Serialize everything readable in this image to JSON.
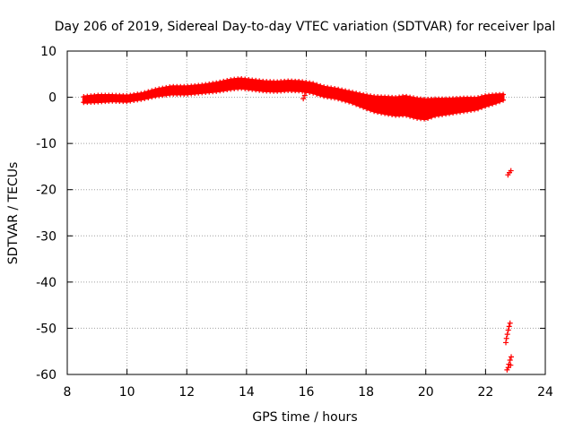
{
  "chart_data": {
    "type": "scatter",
    "title": "Day 206 of 2019, Sidereal Day-to-day VTEC variation (SDTVAR) for receiver lpal",
    "xlabel": "GPS time / hours",
    "ylabel": "SDTVAR / TECUs",
    "xlim": [
      8,
      24
    ],
    "ylim": [
      -60,
      10
    ],
    "xticks": [
      8,
      10,
      12,
      14,
      16,
      18,
      20,
      22,
      24
    ],
    "yticks": [
      -60,
      -50,
      -40,
      -30,
      -20,
      -10,
      0,
      10
    ],
    "grid": true,
    "marker": "+",
    "series": [
      {
        "name": "SDTVAR",
        "color": "#ff0000",
        "band": {
          "x": [
            8.55,
            9.0,
            9.5,
            10.0,
            10.5,
            11.0,
            11.5,
            12.0,
            12.5,
            13.0,
            13.5,
            13.8,
            14.2,
            14.6,
            15.0,
            15.4,
            15.8,
            16.2,
            16.6,
            17.0,
            17.5,
            18.0,
            18.3,
            18.7,
            19.0,
            19.3,
            19.7,
            20.0,
            20.3,
            20.7,
            21.0,
            21.3,
            21.7,
            22.0,
            22.3,
            22.6
          ],
          "y": [
            -0.5,
            -0.3,
            -0.2,
            -0.3,
            0.2,
            1.0,
            1.5,
            1.5,
            1.8,
            2.2,
            2.8,
            3.0,
            2.7,
            2.4,
            2.3,
            2.5,
            2.4,
            2.0,
            1.2,
            0.8,
            0.0,
            -1.0,
            -1.5,
            -1.8,
            -2.0,
            -1.8,
            -2.4,
            -2.6,
            -2.2,
            -2.0,
            -1.8,
            -1.6,
            -1.4,
            -0.8,
            -0.4,
            0.0
          ],
          "half_width": [
            0.6,
            0.7,
            0.6,
            0.6,
            0.6,
            0.7,
            0.8,
            0.8,
            0.8,
            0.9,
            1.0,
            1.0,
            1.0,
            1.0,
            1.0,
            1.0,
            1.0,
            1.0,
            1.0,
            1.0,
            1.1,
            1.4,
            1.6,
            1.8,
            1.9,
            2.0,
            2.1,
            2.1,
            1.8,
            1.6,
            1.5,
            1.4,
            1.2,
            1.1,
            0.9,
            0.6
          ]
        },
        "outliers": [
          {
            "x": 15.9,
            "y": -0.3
          },
          {
            "x": 15.95,
            "y": 0.4
          }
        ],
        "tail_points": [
          {
            "x": 22.75,
            "y": -16.8
          },
          {
            "x": 22.8,
            "y": -16.3
          },
          {
            "x": 22.85,
            "y": -15.9
          },
          {
            "x": 22.7,
            "y": -52.2
          },
          {
            "x": 22.73,
            "y": -51.3
          },
          {
            "x": 22.76,
            "y": -50.4
          },
          {
            "x": 22.79,
            "y": -49.6
          },
          {
            "x": 22.82,
            "y": -48.9
          },
          {
            "x": 22.68,
            "y": -53.1
          },
          {
            "x": 22.78,
            "y": -57.8
          },
          {
            "x": 22.82,
            "y": -56.9
          },
          {
            "x": 22.86,
            "y": -56.2
          },
          {
            "x": 22.72,
            "y": -59.0
          },
          {
            "x": 22.76,
            "y": -58.5
          },
          {
            "x": 22.84,
            "y": -58.0
          }
        ]
      }
    ]
  }
}
